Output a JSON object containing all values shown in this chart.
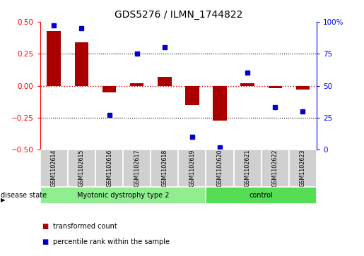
{
  "title": "GDS5276 / ILMN_1744822",
  "samples": [
    "GSM1102614",
    "GSM1102615",
    "GSM1102616",
    "GSM1102617",
    "GSM1102618",
    "GSM1102619",
    "GSM1102620",
    "GSM1102621",
    "GSM1102622",
    "GSM1102623"
  ],
  "transformed_count": [
    0.43,
    0.34,
    -0.05,
    0.02,
    0.07,
    -0.15,
    -0.27,
    0.02,
    -0.02,
    -0.03
  ],
  "percentile_rank": [
    97,
    95,
    27,
    75,
    80,
    10,
    2,
    60,
    33,
    30
  ],
  "groups": [
    {
      "label": "Myotonic dystrophy type 2",
      "start": 0,
      "end": 6,
      "color": "#90ee90"
    },
    {
      "label": "control",
      "start": 6,
      "end": 10,
      "color": "#55dd55"
    }
  ],
  "bar_color": "#aa0000",
  "dot_color": "#0000cc",
  "ylim_left": [
    -0.5,
    0.5
  ],
  "ylim_right": [
    0,
    100
  ],
  "yticks_left": [
    -0.5,
    -0.25,
    0,
    0.25,
    0.5
  ],
  "yticks_right": [
    0,
    25,
    50,
    75,
    100
  ],
  "hline_color": "#cc0000",
  "dotted_color": "black",
  "gray_cell": "#d0d0d0",
  "legend_red_label": "transformed count",
  "legend_blue_label": "percentile rank within the sample",
  "disease_state_label": "disease state",
  "figsize": [
    5.15,
    3.63
  ],
  "dpi": 100
}
